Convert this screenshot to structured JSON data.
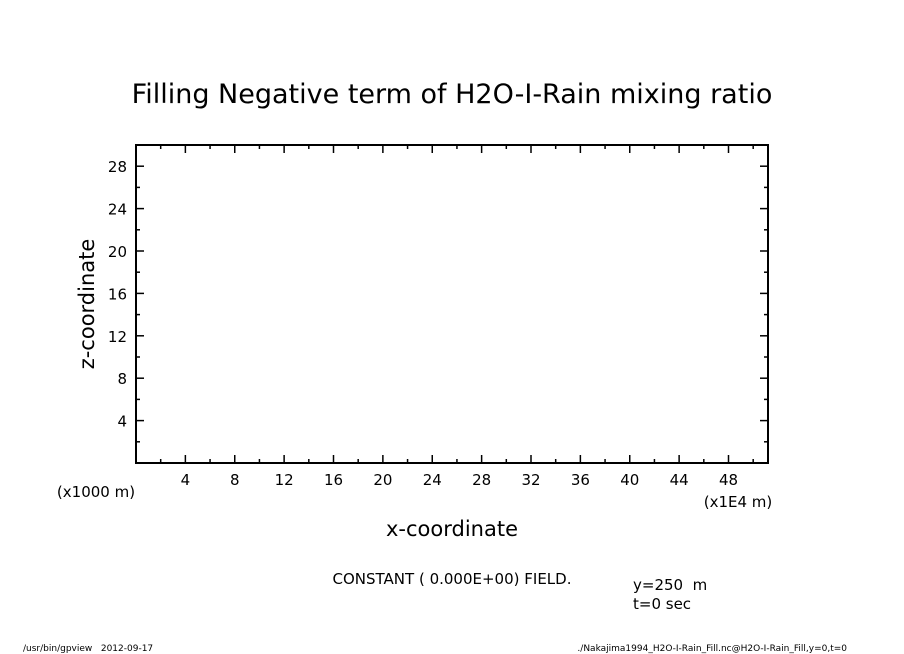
{
  "chart_data": {
    "type": "heatmap",
    "title": "Filling Negative term of H2O-I-Rain mixing ratio",
    "xlabel": "x-coordinate",
    "ylabel": "z-coordinate",
    "x_unit_label": "(x1E4 m)",
    "y_unit_label": "(x1000 m)",
    "xlim": [
      0,
      51.2
    ],
    "ylim": [
      0,
      30
    ],
    "x_ticks": [
      4,
      8,
      12,
      16,
      20,
      24,
      28,
      32,
      36,
      40,
      44,
      48
    ],
    "y_ticks": [
      4,
      8,
      12,
      16,
      20,
      24,
      28
    ],
    "x_minor_step": 2,
    "y_minor_step": 2,
    "grid": false,
    "field_message": "CONSTANT ( 0.000E+00) FIELD.",
    "annotations": [
      "y=250  m",
      "t=0 sec"
    ]
  },
  "footer": {
    "left": "/usr/bin/gpview   2012-09-17",
    "right": "./Nakajima1994_H2O-I-Rain_Fill.nc@H2O-I-Rain_Fill,y=0,t=0"
  }
}
